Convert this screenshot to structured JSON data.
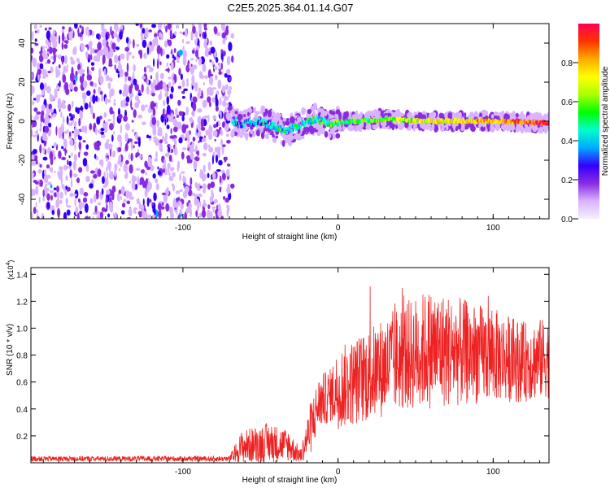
{
  "title": "C2E5.2025.364.01.14.G07",
  "chart_data": [
    {
      "type": "heatmap",
      "name": "spectrogram",
      "xlabel": "Height of straight line (km)",
      "ylabel": "Frequency (Hz)",
      "xlim": [
        -198,
        136
      ],
      "ylim": [
        -50,
        50
      ],
      "xticks": [
        -100,
        0,
        100
      ],
      "xtick_labels": [
        "-100",
        "0",
        "100"
      ],
      "yticks": [
        -40,
        -20,
        0,
        20,
        40
      ],
      "ytick_labels": [
        "-40",
        "-20",
        "0",
        "20",
        "40"
      ],
      "noise_region_x": [
        -198,
        -68
      ],
      "signal_start_x": -68,
      "signal_frequency_hz": 0,
      "signal_ripple": [
        {
          "x": -65,
          "f": -2
        },
        {
          "x": -50,
          "f": 0
        },
        {
          "x": -40,
          "f": -3
        },
        {
          "x": -33,
          "f": -5
        },
        {
          "x": -25,
          "f": -2
        },
        {
          "x": -15,
          "f": 1
        },
        {
          "x": -5,
          "f": -1
        },
        {
          "x": 10,
          "f": 0
        },
        {
          "x": 30,
          "f": 1
        },
        {
          "x": 60,
          "f": 0
        },
        {
          "x": 100,
          "f": 0
        },
        {
          "x": 136,
          "f": -1
        }
      ],
      "colorbar": {
        "label": "Normalized spectral amplitude",
        "range": [
          0,
          1
        ],
        "ticks": [
          0.0,
          0.2,
          0.4,
          0.6,
          0.8
        ],
        "tick_labels": [
          "0.0",
          "0.2",
          "0.4",
          "0.6",
          "0.8"
        ],
        "colors": [
          "#f5f0ff",
          "#d9b3ff",
          "#8a2be2",
          "#3300ff",
          "#00aaff",
          "#00ffcc",
          "#00ff00",
          "#aaff00",
          "#ffff00",
          "#ffaa00",
          "#ff3300",
          "#ff0055"
        ]
      }
    },
    {
      "type": "line",
      "name": "snr",
      "xlabel": "Height of straight line (km)",
      "ylabel": "SNR (10 * v/v)",
      "multiplier_label": "(x10",
      "multiplier_exp": "4",
      "multiplier_close": ")",
      "xlim": [
        -198,
        136
      ],
      "ylim": [
        0,
        1.45
      ],
      "xticks": [
        -100,
        0,
        100
      ],
      "xtick_labels": [
        "-100",
        "0",
        "100"
      ],
      "yticks": [
        0.2,
        0.4,
        0.6,
        0.8,
        1.0,
        1.2,
        1.4
      ],
      "ytick_labels": [
        "0.2",
        "0.4",
        "0.6",
        "0.8",
        "1.0",
        "1.2",
        "1.4"
      ],
      "color": "#ee2222",
      "envelope": [
        {
          "x": -198,
          "mean": 0.03,
          "amp": 0.02
        },
        {
          "x": -70,
          "mean": 0.03,
          "amp": 0.02
        },
        {
          "x": -62,
          "mean": 0.12,
          "amp": 0.12
        },
        {
          "x": -45,
          "mean": 0.15,
          "amp": 0.15
        },
        {
          "x": -32,
          "mean": 0.13,
          "amp": 0.12
        },
        {
          "x": -24,
          "mean": 0.05,
          "amp": 0.05
        },
        {
          "x": -18,
          "mean": 0.25,
          "amp": 0.2
        },
        {
          "x": -12,
          "mean": 0.45,
          "amp": 0.2
        },
        {
          "x": -5,
          "mean": 0.5,
          "amp": 0.2
        },
        {
          "x": 0,
          "mean": 0.55,
          "amp": 0.3
        },
        {
          "x": 20,
          "mean": 0.65,
          "amp": 0.35
        },
        {
          "x": 40,
          "mean": 0.78,
          "amp": 0.4
        },
        {
          "x": 60,
          "mean": 0.85,
          "amp": 0.45
        },
        {
          "x": 80,
          "mean": 0.82,
          "amp": 0.4
        },
        {
          "x": 100,
          "mean": 0.8,
          "amp": 0.35
        },
        {
          "x": 120,
          "mean": 0.75,
          "amp": 0.3
        },
        {
          "x": 136,
          "mean": 0.78,
          "amp": 0.3
        }
      ]
    }
  ]
}
